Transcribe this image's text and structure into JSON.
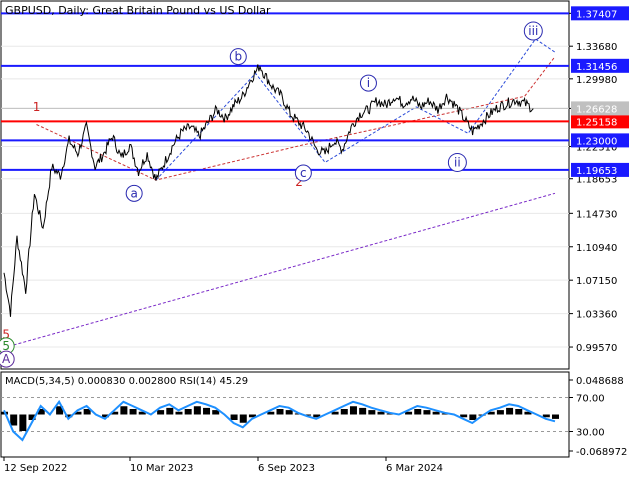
{
  "chart_data": {
    "type": "line",
    "title": "GBPUSD, Daily:  Great Britain Pound vs US Dollar",
    "main_price_axis": [
      "1.37407",
      "1.33680",
      "1.29980",
      "1.26628",
      "1.22310",
      "1.18653",
      "1.14730",
      "1.10940",
      "1.07150",
      "1.03360",
      "0.99570"
    ],
    "time_axis": [
      "12 Sep 2022",
      "10 Mar 2023",
      "6 Sep 2023",
      "6 Mar 2024"
    ],
    "horizontal_levels": [
      {
        "value": "1.37407",
        "color": "#1a1aff"
      },
      {
        "value": "1.31456",
        "color": "#1a1aff"
      },
      {
        "value": "1.25158",
        "color": "#ff0000"
      },
      {
        "value": "1.23000",
        "color": "#1a1aff"
      },
      {
        "value": "1.19653",
        "color": "#1a1aff"
      }
    ],
    "current_price": "1.26628",
    "price_series": [
      {
        "x": 0,
        "y": 1.08
      },
      {
        "x": 3,
        "y": 1.035
      },
      {
        "x": 6,
        "y": 1.12
      },
      {
        "x": 10,
        "y": 1.06
      },
      {
        "x": 14,
        "y": 1.17
      },
      {
        "x": 18,
        "y": 1.13
      },
      {
        "x": 22,
        "y": 1.2
      },
      {
        "x": 26,
        "y": 1.19
      },
      {
        "x": 30,
        "y": 1.23
      },
      {
        "x": 34,
        "y": 1.215
      },
      {
        "x": 38,
        "y": 1.245
      },
      {
        "x": 42,
        "y": 1.2
      },
      {
        "x": 46,
        "y": 1.215
      },
      {
        "x": 50,
        "y": 1.235
      },
      {
        "x": 54,
        "y": 1.21
      },
      {
        "x": 58,
        "y": 1.225
      },
      {
        "x": 62,
        "y": 1.195
      },
      {
        "x": 66,
        "y": 1.215
      },
      {
        "x": 70,
        "y": 1.185
      },
      {
        "x": 74,
        "y": 1.205
      },
      {
        "x": 78,
        "y": 1.225
      },
      {
        "x": 82,
        "y": 1.24
      },
      {
        "x": 86,
        "y": 1.245
      },
      {
        "x": 90,
        "y": 1.235
      },
      {
        "x": 94,
        "y": 1.25
      },
      {
        "x": 98,
        "y": 1.265
      },
      {
        "x": 102,
        "y": 1.255
      },
      {
        "x": 106,
        "y": 1.27
      },
      {
        "x": 110,
        "y": 1.28
      },
      {
        "x": 114,
        "y": 1.3
      },
      {
        "x": 118,
        "y": 1.315
      },
      {
        "x": 120,
        "y": 1.305
      },
      {
        "x": 124,
        "y": 1.29
      },
      {
        "x": 128,
        "y": 1.28
      },
      {
        "x": 132,
        "y": 1.26
      },
      {
        "x": 136,
        "y": 1.25
      },
      {
        "x": 140,
        "y": 1.24
      },
      {
        "x": 144,
        "y": 1.22
      },
      {
        "x": 148,
        "y": 1.215
      },
      {
        "x": 152,
        "y": 1.23
      },
      {
        "x": 156,
        "y": 1.22
      },
      {
        "x": 160,
        "y": 1.245
      },
      {
        "x": 164,
        "y": 1.26
      },
      {
        "x": 168,
        "y": 1.265
      },
      {
        "x": 172,
        "y": 1.275
      },
      {
        "x": 176,
        "y": 1.27
      },
      {
        "x": 180,
        "y": 1.28
      },
      {
        "x": 184,
        "y": 1.272
      },
      {
        "x": 188,
        "y": 1.278
      },
      {
        "x": 192,
        "y": 1.268
      },
      {
        "x": 196,
        "y": 1.275
      },
      {
        "x": 200,
        "y": 1.265
      },
      {
        "x": 204,
        "y": 1.28
      },
      {
        "x": 208,
        "y": 1.27
      },
      {
        "x": 212,
        "y": 1.255
      },
      {
        "x": 216,
        "y": 1.24
      },
      {
        "x": 220,
        "y": 1.25
      },
      {
        "x": 224,
        "y": 1.26
      },
      {
        "x": 228,
        "y": 1.268
      },
      {
        "x": 232,
        "y": 1.272
      },
      {
        "x": 236,
        "y": 1.276
      },
      {
        "x": 240,
        "y": 1.272
      },
      {
        "x": 244,
        "y": 1.266
      }
    ],
    "wave_lines": [
      {
        "color": "#cc3333",
        "points": [
          [
            15,
            1.248
          ],
          [
            70,
            1.185
          ],
          [
            138,
            1.225
          ],
          [
            240,
            1.28
          ],
          [
            254,
            1.325
          ]
        ]
      },
      {
        "color": "#2a4ad8",
        "points": [
          [
            70,
            1.185
          ],
          [
            116,
            1.306
          ],
          [
            148,
            1.205
          ],
          [
            190,
            1.268
          ],
          [
            214,
            1.238
          ],
          [
            245,
            1.345
          ],
          [
            254,
            1.33
          ]
        ]
      },
      {
        "color": "#7a2ac8",
        "points": [
          [
            0,
            0.995
          ],
          [
            254,
            1.17
          ]
        ]
      }
    ],
    "wave_labels": [
      {
        "text": "1",
        "x": 15,
        "y": 1.268,
        "color": "#cc2222",
        "circle": false
      },
      {
        "text": "2",
        "x": 136,
        "y": 1.183,
        "color": "#cc2222",
        "circle": false
      },
      {
        "text": "5",
        "x": 1,
        "y": 1.01,
        "color": "#cc2222",
        "circle": false
      },
      {
        "text": "5",
        "x": 1,
        "y": 0.997,
        "color": "#2a8a2a",
        "circle": true
      },
      {
        "text": "A",
        "x": 1,
        "y": 0.982,
        "color": "#5a2a9a",
        "circle": true
      },
      {
        "text": "a",
        "x": 60,
        "y": 1.17,
        "color": "#2a2ab0",
        "circle": true
      },
      {
        "text": "b",
        "x": 108,
        "y": 1.325,
        "color": "#2a2ab0",
        "circle": true
      },
      {
        "text": "c",
        "x": 138,
        "y": 1.193,
        "color": "#2a2ab0",
        "circle": true
      },
      {
        "text": "i",
        "x": 168,
        "y": 1.295,
        "color": "#2a2ab0",
        "circle": true
      },
      {
        "text": "ii",
        "x": 209,
        "y": 1.205,
        "color": "#2a2ab0",
        "circle": true
      },
      {
        "text": "iii",
        "x": 244,
        "y": 1.354,
        "color": "#2a2ab0",
        "circle": true
      }
    ],
    "indicator_label": "MACD(5,34,5) 0.000830 0.002800 RSI(14) 45.29",
    "indicator_axis": [
      "0.048688",
      "70.00",
      "30.00",
      "-0.068972"
    ],
    "rsi_series": [
      55,
      30,
      20,
      40,
      60,
      50,
      65,
      45,
      55,
      60,
      50,
      45,
      55,
      65,
      60,
      55,
      50,
      58,
      62,
      55,
      60,
      65,
      62,
      58,
      50,
      40,
      35,
      45,
      50,
      55,
      60,
      58,
      52,
      48,
      45,
      50,
      55,
      60,
      65,
      62,
      58,
      55,
      52,
      50,
      55,
      60,
      58,
      55,
      52,
      50,
      45,
      40,
      48,
      55,
      58,
      62,
      60,
      55,
      50,
      45,
      42
    ]
  }
}
